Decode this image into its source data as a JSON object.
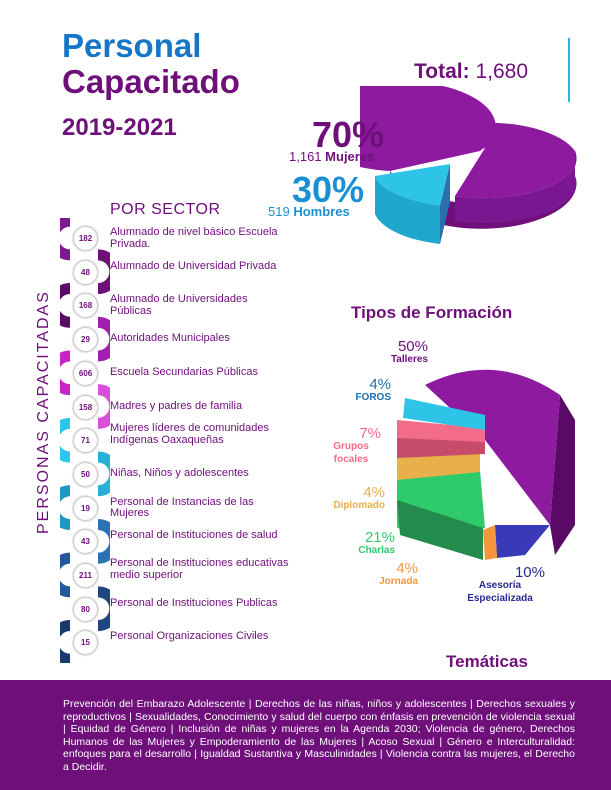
{
  "header": {
    "title_line1": "Personal",
    "title_line2": "Capacitado",
    "years": "2019-2021",
    "total_label": "Total:",
    "total_value": "1,680"
  },
  "gender": {
    "women_pct": "70%",
    "women_count": "1,161",
    "women_label": "Mujeres",
    "men_pct": "30%",
    "men_count": "519",
    "men_label": "Hombres",
    "colors": {
      "women": "#8e1aa0",
      "men": "#2ec4e8"
    }
  },
  "sectors": {
    "title": "POR SECTOR",
    "vertical_label": "PERSONAS CAPACITADAS",
    "items": [
      {
        "count": "182",
        "label": "Alumnado de nivel básico Escuela Privada.",
        "color": "#7d1b8e"
      },
      {
        "count": "48",
        "label": "Alumnado de Universidad Privada",
        "color": "#6e0f7a"
      },
      {
        "count": "168",
        "label": "Alumnado de Universidades Públicas",
        "color": "#5b0d66"
      },
      {
        "count": "29",
        "label": "Autoridades Municipales",
        "color": "#a31fb0"
      },
      {
        "count": "606",
        "label": "Escuela Secundarias Públicas",
        "color": "#c724c7"
      },
      {
        "count": "158",
        "label": "Madres y padres de familia",
        "color": "#d94fd9"
      },
      {
        "count": "71",
        "label": "Mujeres líderes de comunidades Indígenas Oaxaqueñas",
        "color": "#2bc6ea"
      },
      {
        "count": "50",
        "label": "Niñas, Niños y adolescentes",
        "color": "#25b0d6"
      },
      {
        "count": "19",
        "label": "Personal de Instancias de las Mujeres",
        "color": "#1f98c0"
      },
      {
        "count": "43",
        "label": "Personal de Instituciones de salud",
        "color": "#2a72b4"
      },
      {
        "count": "211",
        "label": "Personal de Instituciones educativas medio superior",
        "color": "#24579a"
      },
      {
        "count": "80",
        "label": "Personal de Instituciones Publicas",
        "color": "#1e4680"
      },
      {
        "count": "15",
        "label": "Personal Organizaciones Civiles",
        "color": "#1a3a6a"
      }
    ]
  },
  "formacion": {
    "title": "Tipos de Formación",
    "types": [
      {
        "pct": "50%",
        "name": "Talleres",
        "color": "#8e1aa0",
        "value": 50
      },
      {
        "pct": "4%",
        "name": "FOROS",
        "color": "#2ec4e8",
        "value": 4
      },
      {
        "pct": "7%",
        "name": "Grupos focales",
        "color": "#f26b8a",
        "value": 7
      },
      {
        "pct": "4%",
        "name": "Diplomado",
        "color": "#e8b04a",
        "value": 4
      },
      {
        "pct": "21%",
        "name": "Charlas",
        "color": "#2fca6a",
        "value": 21
      },
      {
        "pct": "4%",
        "name": "Jornada",
        "color": "#f5963c",
        "value": 4
      },
      {
        "pct": "10%",
        "name": "Asesoría Especializada",
        "color": "#3a3ab8",
        "value": 10
      }
    ]
  },
  "tematicas": {
    "title": "Temáticas",
    "text": "Prevención del Embarazo Adolescente | Derechos de las niñas, niños y adolescentes | Derechos sexuales y reproductivos | Sexualidades, Conocimiento y salud del cuerpo con énfasis en prevención de violencia sexual | Equidad de Género | Inclusión de niñas y mujeres en la Agenda 2030; Violencia de género, Derechos Humanos de las Mujeres y Empoderamiento de las Mujeres | Acoso Sexual | Género e Interculturalidad: enfoques para el desarrollo | Igualdad Sustantiva y Masculinidades | Violencia contra las mujeres, el Derecho a Decidir."
  }
}
